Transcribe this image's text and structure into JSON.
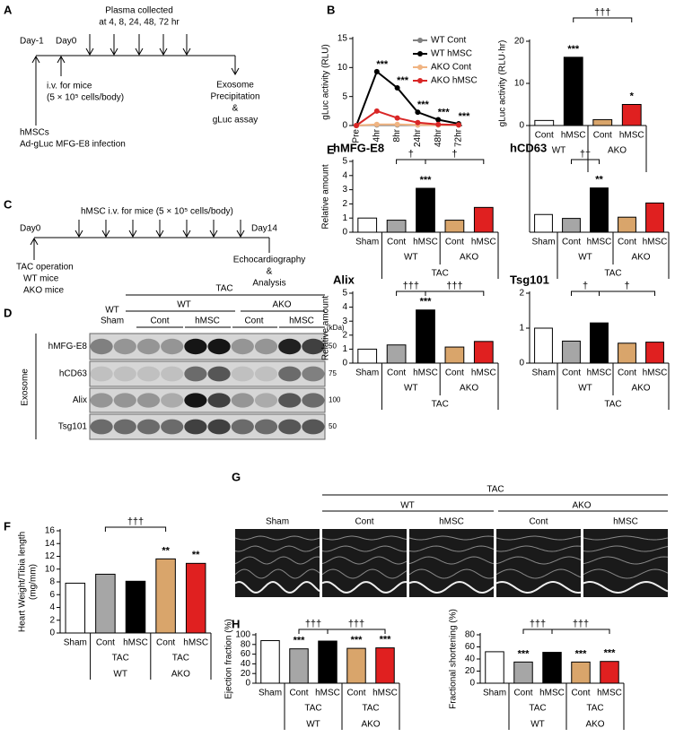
{
  "panel_labels": [
    "A",
    "B",
    "C",
    "D",
    "E",
    "F",
    "G",
    "H"
  ],
  "timeline_a": {
    "day_minus1": "Day-1",
    "day0": "Day0",
    "plasma": [
      "Plasma collected",
      "at 4, 8, 24, 48, 72 hr"
    ],
    "iv": [
      "i.v. for mice",
      "(5 × 10⁵ cells/body)"
    ],
    "infection": [
      "hMSCs",
      "Ad-gLuc MFG-E8 infection"
    ],
    "assay": [
      "Exosome",
      "Precipitation",
      "&",
      "gLuc assay"
    ]
  },
  "timeline_c": {
    "injection": "hMSC i.v. for mice (5 × 10⁵ cells/body)",
    "day0": "Day0",
    "day14": "Day14",
    "operation": [
      "TAC operation",
      "WT mice",
      "AKO mice"
    ],
    "analysis": [
      "Echocardiography",
      "&",
      "Analysis"
    ]
  },
  "blot": {
    "header": "TAC",
    "sham": [
      "WT",
      "Sham"
    ],
    "groups": [
      "WT",
      "AKO"
    ],
    "lanes": [
      "Cont",
      "hMSC",
      "Cont",
      "hMSC"
    ],
    "side_label": "Exosome",
    "rows": [
      "hMFG-E8",
      "hCD63",
      "Alix",
      "Tsg101"
    ],
    "unit": "(kDa)",
    "markers": [
      50,
      75,
      100,
      50
    ]
  },
  "echo": {
    "header": "TAC",
    "groups": [
      "WT",
      "AKO"
    ],
    "lanes": [
      "Sham",
      "Cont",
      "hMSC",
      "Cont",
      "hMSC"
    ]
  },
  "chart_data": [
    {
      "type": "line",
      "y_label": "gLuc activity (RLU)",
      "categories": [
        "Pre",
        "4hr",
        "8hr",
        "24hr",
        "48hr",
        "72hr"
      ],
      "series": [
        {
          "name": "WT Cont",
          "color": "#808080",
          "values": [
            0,
            0.1,
            0.1,
            0.1,
            0.1,
            0.1
          ]
        },
        {
          "name": "WT hMSC",
          "color": "#000000",
          "values": [
            0,
            9.3,
            6.5,
            2.3,
            1.0,
            0.3
          ]
        },
        {
          "name": "AKO Cont",
          "color": "#f0b482",
          "values": [
            0,
            0.2,
            0.2,
            0.1,
            0.1,
            0.1
          ]
        },
        {
          "name": "AKO hMSC",
          "color": "#d92626",
          "values": [
            0,
            2.5,
            1.3,
            0.5,
            0.2,
            0.1
          ]
        }
      ],
      "ylim": [
        0,
        15
      ],
      "yticks": [
        0,
        5,
        10,
        15
      ],
      "annotations": [
        null,
        "***",
        "***",
        "***",
        "***",
        "***"
      ]
    },
    {
      "type": "bar",
      "y_label": "gLuc activity (RLU·hr)",
      "categories": [
        "Cont",
        "hMSC",
        "Cont",
        "hMSC"
      ],
      "values": [
        1.2,
        16.2,
        1.4,
        5.0
      ],
      "colors": [
        "#ffffff",
        "#000000",
        "#d9a56b",
        "#e02020"
      ],
      "ylim": [
        0,
        20
      ],
      "yticks": [
        0,
        10,
        20
      ],
      "stars": [
        null,
        "***",
        null,
        "*"
      ],
      "brackets": [
        "†††"
      ],
      "group_labels": [
        "WT",
        "AKO"
      ]
    },
    {
      "type": "bar",
      "title": "hMFG-E8",
      "y_label": "Relative amount",
      "categories": [
        "Sham",
        "Cont",
        "hMSC",
        "Cont",
        "hMSC"
      ],
      "values": [
        1.0,
        0.85,
        3.1,
        0.85,
        1.75
      ],
      "colors": [
        "#ffffff",
        "#a6a6a6",
        "#000000",
        "#d9a56b",
        "#e02020"
      ],
      "ylim": [
        0,
        5
      ],
      "yticks": [
        0,
        1,
        2,
        3,
        4,
        5
      ],
      "stars": [
        null,
        null,
        "***",
        null,
        null
      ],
      "brackets": [
        "†",
        "†"
      ],
      "group_labels": [
        "WT",
        "AKO"
      ],
      "outer_label": "TAC"
    },
    {
      "type": "bar",
      "title": "hCD63",
      "categories": [
        "Sham",
        "Cont",
        "hMSC",
        "Cont",
        "hMSC"
      ],
      "values": [
        1.0,
        0.78,
        2.5,
        0.85,
        1.65
      ],
      "colors": [
        "#ffffff",
        "#a6a6a6",
        "#000000",
        "#d9a56b",
        "#e02020"
      ],
      "ylim": [
        0,
        4
      ],
      "stars": [
        null,
        null,
        "**",
        null,
        null
      ],
      "brackets": [
        "††"
      ],
      "group_labels": [
        "WT",
        "AKO"
      ],
      "outer_label": "TAC"
    },
    {
      "type": "bar",
      "title": "Alix",
      "y_label": "Relative amount",
      "categories": [
        "Sham",
        "Cont",
        "hMSC",
        "Cont",
        "hMSC"
      ],
      "values": [
        1.0,
        1.3,
        3.8,
        1.15,
        1.55
      ],
      "colors": [
        "#ffffff",
        "#a6a6a6",
        "#000000",
        "#d9a56b",
        "#e02020"
      ],
      "ylim": [
        0,
        5
      ],
      "yticks": [
        0,
        1,
        2,
        3,
        4,
        5
      ],
      "stars": [
        null,
        null,
        "***",
        null,
        null
      ],
      "brackets": [
        "†††",
        "†††"
      ],
      "group_labels": [
        "WT",
        "AKO"
      ],
      "outer_label": "TAC"
    },
    {
      "type": "bar",
      "title": "Tsg101",
      "categories": [
        "Sham",
        "Cont",
        "hMSC",
        "Cont",
        "hMSC"
      ],
      "values": [
        1.0,
        0.63,
        1.15,
        0.57,
        0.6
      ],
      "colors": [
        "#ffffff",
        "#a6a6a6",
        "#000000",
        "#d9a56b",
        "#e02020"
      ],
      "ylim": [
        0,
        2
      ],
      "yticks": [
        0,
        1,
        2
      ],
      "stars": [
        null,
        null,
        null,
        null,
        null
      ],
      "brackets": [
        "†",
        "†"
      ],
      "group_labels": [
        "WT",
        "AKO"
      ],
      "outer_label": "TAC"
    },
    {
      "type": "bar",
      "y_label": [
        "Heart Weight/Tibia length",
        "(mg/mm)"
      ],
      "categories": [
        "Sham",
        "Cont",
        "hMSC",
        "Cont",
        "hMSC"
      ],
      "values": [
        7.8,
        9.2,
        8.1,
        11.6,
        10.9
      ],
      "colors": [
        "#ffffff",
        "#a6a6a6",
        "#000000",
        "#d9a56b",
        "#e02020"
      ],
      "ylim": [
        0,
        16
      ],
      "yticks": [
        0,
        2,
        4,
        6,
        8,
        10,
        12,
        14,
        16
      ],
      "stars": [
        null,
        null,
        null,
        "**",
        "**"
      ],
      "brackets": [
        "†††"
      ],
      "group_labels": [
        "WT",
        "AKO"
      ],
      "sub_labels": [
        "TAC",
        "TAC"
      ]
    },
    {
      "type": "bar",
      "y_label": "Ejection fraction (%)",
      "categories": [
        "Sham",
        "Cont",
        "hMSC",
        "Cont",
        "hMSC"
      ],
      "values": [
        88,
        71,
        87,
        72,
        73
      ],
      "colors": [
        "#ffffff",
        "#a6a6a6",
        "#000000",
        "#d9a56b",
        "#e02020"
      ],
      "ylim": [
        0,
        100
      ],
      "yticks": [
        0,
        20,
        40,
        60,
        80,
        100
      ],
      "stars": [
        null,
        "***",
        null,
        "***",
        "***"
      ],
      "brackets": [
        "†††",
        "†††"
      ],
      "group_labels": [
        "WT",
        "AKO"
      ],
      "sub_labels": [
        "TAC",
        "TAC"
      ]
    },
    {
      "type": "bar",
      "y_label": "Fractional shortening (%)",
      "categories": [
        "Sham",
        "Cont",
        "hMSC",
        "Cont",
        "hMSC"
      ],
      "values": [
        52,
        35,
        51,
        35,
        36
      ],
      "colors": [
        "#ffffff",
        "#a6a6a6",
        "#000000",
        "#d9a56b",
        "#e02020"
      ],
      "ylim": [
        0,
        80
      ],
      "yticks": [
        0,
        20,
        40,
        60,
        80
      ],
      "stars": [
        null,
        "***",
        null,
        "***",
        "***"
      ],
      "brackets": [
        "†††",
        "†††"
      ],
      "group_labels": [
        "WT",
        "AKO"
      ],
      "sub_labels": [
        "TAC",
        "TAC"
      ]
    }
  ]
}
